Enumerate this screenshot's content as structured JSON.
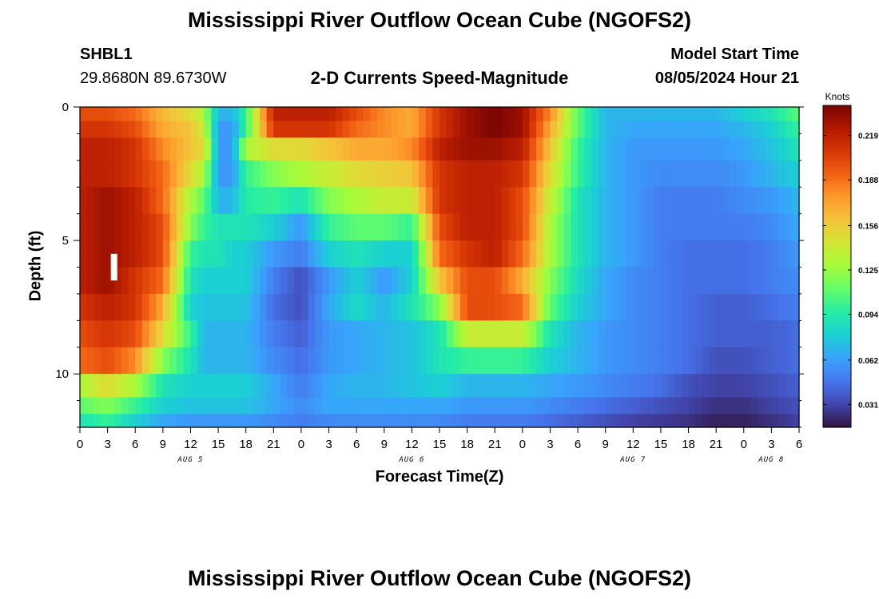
{
  "page": {
    "title_top": "Mississippi River Outflow Ocean Cube (NGOFS2)",
    "title_bottom": "Mississippi River Outflow Ocean Cube (NGOFS2)",
    "station_id": "SHBL1",
    "station_coords": "29.8680N  89.6730W",
    "subtitle": "2-D Currents Speed-Magnitude",
    "model_start_label": "Model Start Time",
    "model_start_value": "08/05/2024 Hour 21"
  },
  "chart_data": {
    "type": "heatmap",
    "title": "2-D Currents Speed-Magnitude",
    "xlabel": "Forecast Time(Z)",
    "ylabel": "Depth (ft)",
    "colorbar_label": "Knots",
    "x_tick_labels": [
      "0",
      "3",
      "6",
      "9",
      "12",
      "15",
      "18",
      "21",
      "0",
      "3",
      "6",
      "9",
      "12",
      "15",
      "18",
      "21",
      "0",
      "3",
      "6",
      "9",
      "12",
      "15",
      "18",
      "21",
      "0",
      "3",
      "6"
    ],
    "day_labels": [
      {
        "label": "AUG 5",
        "hour": 12
      },
      {
        "label": "AUG 6",
        "hour": 36
      },
      {
        "label": "AUG 7",
        "hour": 60
      },
      {
        "label": "AUG 8",
        "hour": 75
      }
    ],
    "x_range_hours": [
      0,
      78
    ],
    "y_range_ft": [
      0,
      12
    ],
    "y_ticks": [
      0,
      5,
      10
    ],
    "colorbar_ticks": [
      0.031,
      0.062,
      0.094,
      0.125,
      0.156,
      0.188,
      0.219
    ],
    "colorbar_range": [
      0.015,
      0.24
    ],
    "colormap": [
      "#30123b",
      "#4145ab",
      "#4675ed",
      "#39a2fc",
      "#1bcfd4",
      "#24eca6",
      "#61fc6c",
      "#a4fc3b",
      "#d1e834",
      "#f3c63a",
      "#fe9b2d",
      "#f36315",
      "#d93806",
      "#b11901",
      "#7a0403"
    ],
    "depth_levels_ft": [
      0.25,
      0.8,
      1.5,
      2.5,
      3.5,
      4.5,
      5.5,
      6.5,
      7.5,
      8.5,
      9.5,
      10.5,
      11.25,
      11.75
    ],
    "anchor_hours": [
      0,
      3,
      6,
      9,
      12,
      13.5,
      15,
      16.5,
      18,
      21,
      24,
      27,
      30,
      33,
      36,
      39,
      42,
      45,
      48,
      51,
      54,
      57,
      60,
      63,
      66,
      69,
      72,
      75,
      78
    ],
    "speed_knots": [
      [
        0.2,
        0.2,
        0.19,
        0.165,
        0.15,
        0.13,
        0.07,
        0.07,
        0.1,
        0.22,
        0.22,
        0.22,
        0.2,
        0.18,
        0.17,
        0.21,
        0.23,
        0.24,
        0.23,
        0.18,
        0.11,
        0.07,
        0.07,
        0.07,
        0.07,
        0.07,
        0.08,
        0.09,
        0.11
      ],
      [
        0.21,
        0.21,
        0.2,
        0.17,
        0.16,
        0.14,
        0.06,
        0.06,
        0.1,
        0.21,
        0.21,
        0.21,
        0.19,
        0.18,
        0.17,
        0.21,
        0.23,
        0.24,
        0.23,
        0.17,
        0.11,
        0.07,
        0.065,
        0.065,
        0.065,
        0.065,
        0.07,
        0.08,
        0.1
      ],
      [
        0.22,
        0.22,
        0.21,
        0.18,
        0.16,
        0.15,
        0.06,
        0.06,
        0.13,
        0.15,
        0.15,
        0.16,
        0.17,
        0.17,
        0.18,
        0.22,
        0.23,
        0.23,
        0.22,
        0.16,
        0.1,
        0.07,
        0.06,
        0.06,
        0.06,
        0.06,
        0.065,
        0.075,
        0.09
      ],
      [
        0.22,
        0.22,
        0.21,
        0.19,
        0.15,
        0.13,
        0.06,
        0.06,
        0.1,
        0.12,
        0.13,
        0.14,
        0.15,
        0.155,
        0.16,
        0.21,
        0.22,
        0.22,
        0.21,
        0.15,
        0.1,
        0.07,
        0.06,
        0.055,
        0.055,
        0.055,
        0.06,
        0.07,
        0.08
      ],
      [
        0.22,
        0.23,
        0.22,
        0.19,
        0.13,
        0.11,
        0.07,
        0.07,
        0.095,
        0.1,
        0.09,
        0.12,
        0.13,
        0.14,
        0.14,
        0.21,
        0.22,
        0.22,
        0.2,
        0.14,
        0.09,
        0.07,
        0.06,
        0.05,
        0.05,
        0.05,
        0.055,
        0.06,
        0.07
      ],
      [
        0.22,
        0.23,
        0.22,
        0.2,
        0.12,
        0.1,
        0.09,
        0.09,
        0.09,
        0.08,
        0.06,
        0.1,
        0.11,
        0.11,
        0.1,
        0.2,
        0.22,
        0.22,
        0.2,
        0.13,
        0.09,
        0.07,
        0.06,
        0.05,
        0.05,
        0.05,
        0.05,
        0.055,
        0.065
      ],
      [
        0.22,
        0.23,
        0.22,
        0.2,
        0.1,
        0.09,
        0.09,
        0.08,
        0.08,
        0.06,
        0.05,
        0.08,
        0.09,
        0.08,
        0.08,
        0.19,
        0.21,
        0.22,
        0.19,
        0.13,
        0.09,
        0.07,
        0.06,
        0.05,
        0.045,
        0.045,
        0.045,
        0.05,
        0.06
      ],
      [
        0.22,
        0.23,
        0.21,
        0.19,
        0.09,
        0.08,
        0.08,
        0.08,
        0.08,
        0.05,
        0.035,
        0.06,
        0.08,
        0.06,
        0.08,
        0.16,
        0.2,
        0.2,
        0.17,
        0.12,
        0.085,
        0.065,
        0.055,
        0.05,
        0.045,
        0.045,
        0.045,
        0.05,
        0.055
      ],
      [
        0.21,
        0.22,
        0.21,
        0.17,
        0.08,
        0.075,
        0.075,
        0.075,
        0.075,
        0.045,
        0.035,
        0.065,
        0.085,
        0.07,
        0.09,
        0.12,
        0.2,
        0.2,
        0.19,
        0.11,
        0.08,
        0.065,
        0.055,
        0.05,
        0.045,
        0.04,
        0.04,
        0.045,
        0.05
      ],
      [
        0.2,
        0.21,
        0.2,
        0.15,
        0.1,
        0.07,
        0.07,
        0.07,
        0.07,
        0.05,
        0.04,
        0.06,
        0.065,
        0.07,
        0.075,
        0.09,
        0.14,
        0.14,
        0.14,
        0.09,
        0.07,
        0.06,
        0.055,
        0.05,
        0.045,
        0.04,
        0.04,
        0.04,
        0.045
      ],
      [
        0.19,
        0.2,
        0.18,
        0.12,
        0.09,
        0.07,
        0.07,
        0.07,
        0.07,
        0.055,
        0.045,
        0.06,
        0.065,
        0.07,
        0.075,
        0.09,
        0.1,
        0.1,
        0.1,
        0.08,
        0.07,
        0.06,
        0.055,
        0.05,
        0.045,
        0.035,
        0.035,
        0.04,
        0.045
      ],
      [
        0.13,
        0.15,
        0.13,
        0.09,
        0.08,
        0.08,
        0.08,
        0.08,
        0.08,
        0.065,
        0.05,
        0.065,
        0.07,
        0.07,
        0.075,
        0.08,
        0.07,
        0.07,
        0.07,
        0.065,
        0.06,
        0.055,
        0.05,
        0.045,
        0.035,
        0.03,
        0.03,
        0.035,
        0.04
      ],
      [
        0.11,
        0.12,
        0.1,
        0.08,
        0.075,
        0.075,
        0.075,
        0.075,
        0.075,
        0.065,
        0.055,
        0.065,
        0.065,
        0.065,
        0.065,
        0.065,
        0.06,
        0.06,
        0.06,
        0.055,
        0.05,
        0.045,
        0.04,
        0.035,
        0.03,
        0.025,
        0.025,
        0.03,
        0.035
      ],
      [
        0.09,
        0.1,
        0.08,
        0.065,
        0.06,
        0.06,
        0.06,
        0.06,
        0.06,
        0.055,
        0.05,
        0.055,
        0.055,
        0.055,
        0.055,
        0.055,
        0.05,
        0.05,
        0.05,
        0.045,
        0.04,
        0.035,
        0.03,
        0.028,
        0.025,
        0.02,
        0.02,
        0.025,
        0.03
      ]
    ],
    "marker": {
      "hour": 3.7,
      "depth_range_ft": [
        5.5,
        6.5
      ],
      "color": "#ffffff"
    }
  }
}
